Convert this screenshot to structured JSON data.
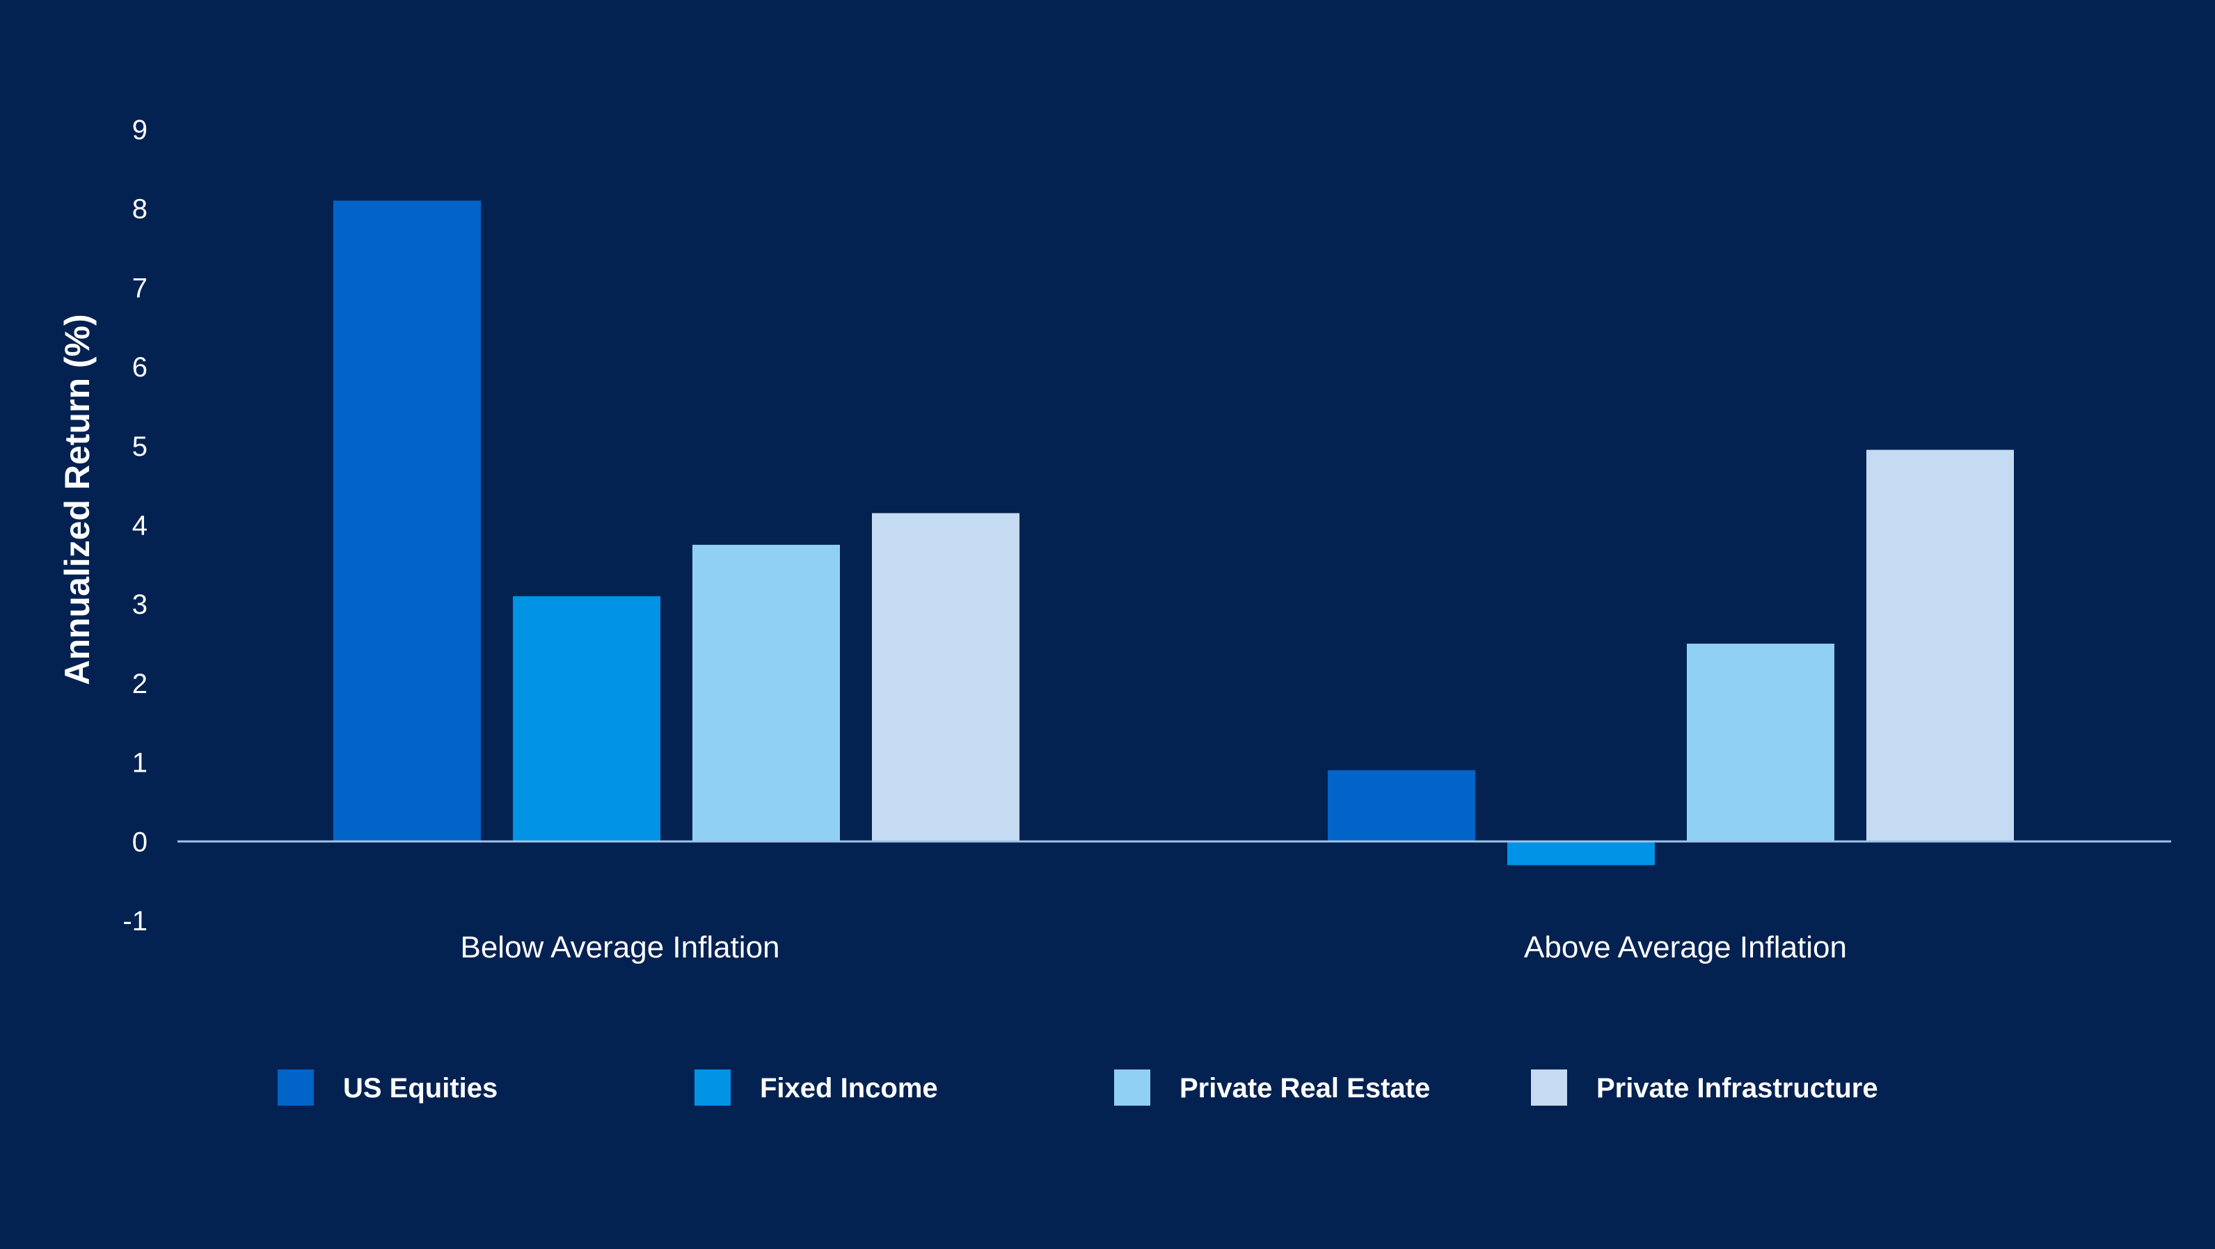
{
  "chart_data": {
    "type": "bar",
    "title": "",
    "xlabel": "",
    "ylabel": "Annualized Return (%)",
    "ylim": [
      -1,
      9
    ],
    "yticks": [
      9,
      8,
      7,
      6,
      5,
      4,
      3,
      2,
      1,
      0,
      -1
    ],
    "grid": false,
    "legend_position": "bottom",
    "categories": [
      "Below Average Inflation",
      "Above Average Inflation"
    ],
    "series": [
      {
        "name": "US Equities",
        "color": "#0064c8",
        "values": [
          8.1,
          0.9
        ]
      },
      {
        "name": "Fixed Income",
        "color": "#0093e6",
        "values": [
          3.1,
          -0.3
        ]
      },
      {
        "name": "Private Real Estate",
        "color": "#90d0f5",
        "values": [
          3.75,
          2.5
        ]
      },
      {
        "name": "Private Infrastructure",
        "color": "#c5dbf1",
        "values": [
          4.15,
          4.95
        ]
      }
    ]
  },
  "colors": {
    "background": "#042251",
    "text": "#ffffff",
    "zero_line": "#9fc3e8"
  }
}
